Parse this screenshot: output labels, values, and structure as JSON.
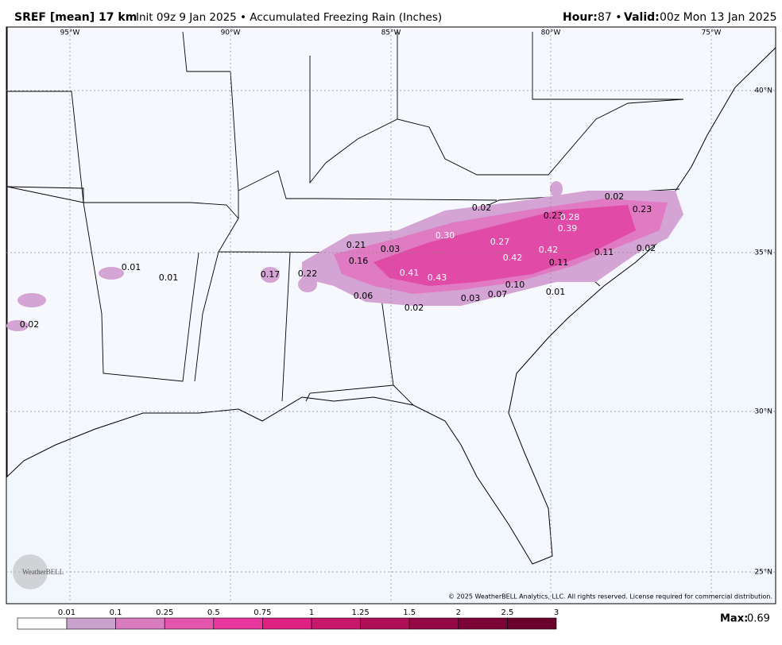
{
  "header": {
    "model": "SREF [mean] 17 km",
    "description": "Init 09z 9 Jan 2025 • Accumulated Freezing Rain (Inches)",
    "hour_label": "Hour:",
    "hour": "87 •",
    "valid_label": "Valid:",
    "valid": "00z Mon 13 Jan 2025"
  },
  "map": {
    "longitudes": [
      "95°W",
      "90°W",
      "85°W",
      "80°W",
      "75°W"
    ],
    "latitudes": [
      "40°N",
      "35°N",
      "30°N",
      "25°N"
    ],
    "value_labels": [
      "0.02",
      "0.02",
      "0.23",
      "0.28",
      "0.23",
      "0.39",
      "0.30",
      "0.27",
      "0.21",
      "0.03",
      "0.42",
      "0.02",
      "0.11",
      "0.42",
      "0.11",
      "0.16",
      "0.01",
      "0.41",
      "0.43",
      "0.17",
      "0.22",
      "0.01",
      "0.10",
      "0.01",
      "0.07",
      "0.06",
      "0.03",
      "0.02",
      "0.02"
    ],
    "copyright": "© 2025 WeatherBELL Analytics, LLC. All rights reserved. License required for commercial distribution.",
    "logo": "WeatherBELL"
  },
  "legend": {
    "labels": [
      "0.01",
      "0.1",
      "0.25",
      "0.5",
      "0.75",
      "1",
      "1.25",
      "1.5",
      "2",
      "2.5",
      "3"
    ],
    "colors": [
      "#ffffff",
      "#c9a2cc",
      "#d97cbf",
      "#e256ad",
      "#e8379f",
      "#df2184",
      "#c8186c",
      "#ae0f56",
      "#930845",
      "#7d0438",
      "#6a022c"
    ]
  },
  "max_label": "Max:",
  "max_value": "0.69"
}
